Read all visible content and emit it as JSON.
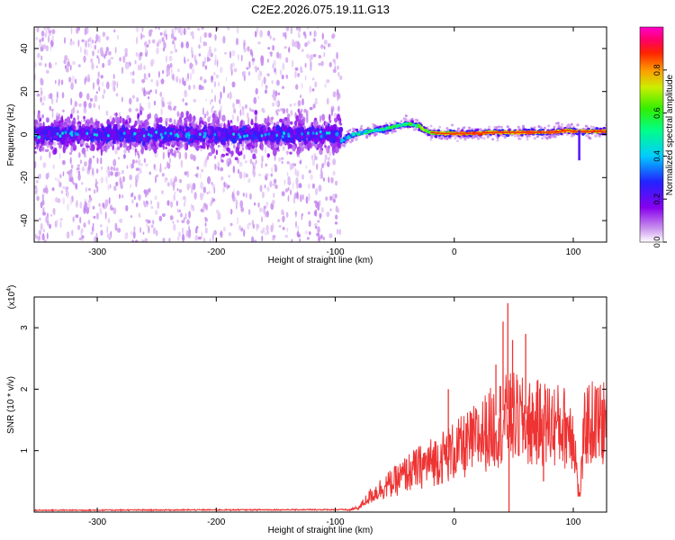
{
  "title": "C2E2.2026.075.19.11.G13",
  "chart_data": [
    {
      "type": "heatmap",
      "title": "C2E2.2026.075.19.11.G13",
      "xlabel": "Height of straight line (km)",
      "ylabel": "Frequency (Hz)",
      "xlim": [
        -353,
        128
      ],
      "ylim": [
        -50,
        50
      ],
      "xticks": [
        -300,
        -200,
        -100,
        0,
        100
      ],
      "yticks": [
        -40,
        -20,
        0,
        20,
        40
      ],
      "colorbar": {
        "label": "Normalized spectral amplitude",
        "range": [
          0.0,
          1.0
        ],
        "ticks": [
          0.0,
          0.2,
          0.4,
          0.6,
          0.8
        ]
      },
      "noise_region_x": [
        -353,
        -95
      ],
      "signal_region_x": [
        -95,
        128
      ],
      "ridge": {
        "x": [
          -95,
          -85,
          -75,
          -65,
          -55,
          -45,
          -38,
          -30,
          -25,
          -20,
          -10,
          0,
          10,
          20,
          30,
          40,
          50,
          60,
          70,
          80,
          90,
          95,
          100,
          105,
          110,
          120,
          128
        ],
        "y": [
          -3,
          0,
          1,
          2,
          3,
          4.5,
          5,
          4,
          2,
          1,
          0.5,
          0.5,
          0.5,
          0.5,
          1,
          1,
          1,
          1,
          1,
          1,
          1.5,
          2,
          1.5,
          1.5,
          1.5,
          1.5,
          1.5
        ],
        "amplitude": [
          0.45,
          0.5,
          0.55,
          0.55,
          0.6,
          0.6,
          0.6,
          0.65,
          0.7,
          0.75,
          0.8,
          0.85,
          0.85,
          0.85,
          0.85,
          0.85,
          0.85,
          0.85,
          0.85,
          0.85,
          0.85,
          0.85,
          0.85,
          0.85,
          0.85,
          0.85,
          0.85
        ]
      },
      "spike_feature": {
        "x": 105,
        "y_range": [
          -12,
          2
        ]
      }
    },
    {
      "type": "line",
      "xlabel": "Height of straight line (km)",
      "ylabel": "SNR (10 * v/v)",
      "yscale_label": "(x10",
      "yscale_exponent": "4",
      "xlim": [
        -353,
        128
      ],
      "ylim": [
        0,
        3.5
      ],
      "xticks": [
        -300,
        -200,
        -100,
        0,
        100
      ],
      "yticks": [
        1,
        2,
        3
      ],
      "color": "#ee3333",
      "envelope": {
        "x": [
          -353,
          -90,
          -80,
          -75,
          -70,
          -60,
          -50,
          -40,
          -30,
          -20,
          -10,
          0,
          10,
          20,
          30,
          40,
          50,
          60,
          70,
          80,
          90,
          100,
          105,
          110,
          120,
          128
        ],
        "y": [
          0.02,
          0.03,
          0.08,
          0.2,
          0.3,
          0.45,
          0.55,
          0.7,
          0.8,
          0.9,
          1.0,
          1.1,
          1.2,
          1.35,
          1.5,
          1.65,
          1.7,
          1.6,
          1.6,
          1.6,
          1.55,
          1.5,
          0.2,
          1.6,
          1.6,
          1.6
        ]
      },
      "spikes": [
        {
          "x": 41,
          "y": 3.1
        },
        {
          "x": 45,
          "y": 3.4
        },
        {
          "x": 46,
          "y": 0.0
        },
        {
          "x": 49,
          "y": 2.8
        },
        {
          "x": 60,
          "y": 2.9
        },
        {
          "x": 63,
          "y": 1.1
        },
        {
          "x": 75,
          "y": 0.5
        },
        {
          "x": 35,
          "y": 2.4
        },
        {
          "x": -5,
          "y": 2.0
        }
      ]
    }
  ]
}
